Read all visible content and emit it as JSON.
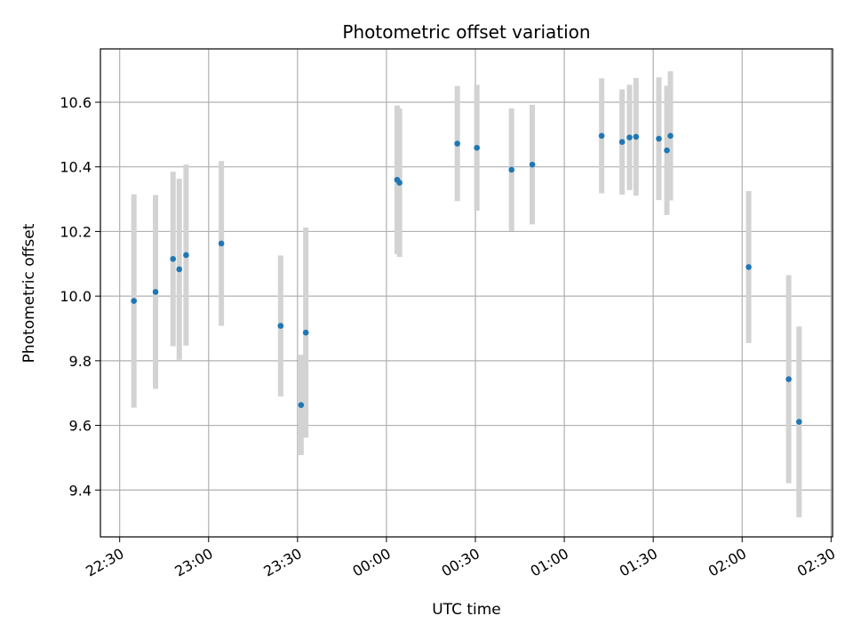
{
  "chart_data": {
    "type": "scatter",
    "title": "Photometric offset variation",
    "xlabel": "UTC time",
    "ylabel": "Photometric offset",
    "x_ticks": [
      "22:30",
      "23:00",
      "23:30",
      "00:00",
      "00:30",
      "01:00",
      "01:30",
      "02:00",
      "02:30"
    ],
    "y_ticks": [
      "9.4",
      "9.6",
      "9.8",
      "10.0",
      "10.2",
      "10.4",
      "10.6"
    ],
    "x_tick_minutes": [
      0,
      30,
      60,
      90,
      120,
      150,
      180,
      210,
      240
    ],
    "y_tick_values": [
      9.4,
      9.6,
      9.8,
      10.0,
      10.2,
      10.4,
      10.6
    ],
    "xlim_minutes": [
      -6.5,
      240.5
    ],
    "ylim": [
      9.255,
      10.765
    ],
    "grid": true,
    "point_color": "#1f77b4",
    "errorbar_color": "#d3d3d3",
    "points": [
      {
        "x": "22:34.8",
        "y": 9.985,
        "err": 0.33
      },
      {
        "x": "22:42.1",
        "y": 10.013,
        "err": 0.3
      },
      {
        "x": "22:48.0",
        "y": 10.115,
        "err": 0.27
      },
      {
        "x": "22:50.1",
        "y": 10.083,
        "err": 0.28
      },
      {
        "x": "22:52.4",
        "y": 10.127,
        "err": 0.28
      },
      {
        "x": "23:04.3",
        "y": 10.163,
        "err": 0.255
      },
      {
        "x": "23:24.3",
        "y": 9.908,
        "err": 0.218
      },
      {
        "x": "23:31.2",
        "y": 9.663,
        "err": 0.155
      },
      {
        "x": "23:32.8",
        "y": 9.887,
        "err": 0.325
      },
      {
        "x": "00:03.6",
        "y": 10.36,
        "err": 0.23
      },
      {
        "x": "00:04.4",
        "y": 10.351,
        "err": 0.23
      },
      {
        "x": "00:23.9",
        "y": 10.472,
        "err": 0.178
      },
      {
        "x": "00:30.5",
        "y": 10.459,
        "err": 0.195
      },
      {
        "x": "00:42.2",
        "y": 10.391,
        "err": 0.19
      },
      {
        "x": "00:49.2",
        "y": 10.407,
        "err": 0.185
      },
      {
        "x": "01:12.6",
        "y": 10.496,
        "err": 0.178
      },
      {
        "x": "01:19.5",
        "y": 10.477,
        "err": 0.163
      },
      {
        "x": "01:22.0",
        "y": 10.491,
        "err": 0.163
      },
      {
        "x": "01:24.2",
        "y": 10.493,
        "err": 0.182
      },
      {
        "x": "01:31.9",
        "y": 10.487,
        "err": 0.19
      },
      {
        "x": "01:34.6",
        "y": 10.451,
        "err": 0.2
      },
      {
        "x": "01:35.8",
        "y": 10.496,
        "err": 0.2
      },
      {
        "x": "02:02.2",
        "y": 10.09,
        "err": 0.235
      },
      {
        "x": "02:15.7",
        "y": 9.743,
        "err": 0.322
      },
      {
        "x": "02:19.2",
        "y": 9.611,
        "err": 0.295
      }
    ]
  }
}
